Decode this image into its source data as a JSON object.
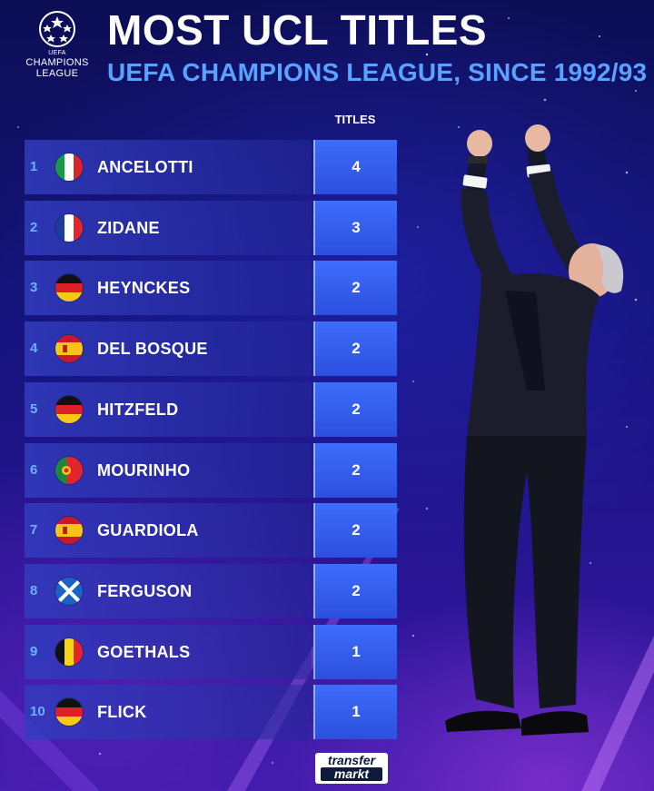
{
  "header": {
    "logo_label_line1": "CHAMPIONS",
    "logo_label_line2": "LEAGUE",
    "logo_label_top": "UEFA",
    "title": "MOST UCL TITLES",
    "subtitle": "UEFA CHAMPIONS LEAGUE, SINCE 1992/93"
  },
  "table": {
    "column_header": "TITLES",
    "rows": [
      {
        "rank": "1",
        "name": "ANCELOTTI",
        "titles": "4",
        "flag": "italy-flag-icon"
      },
      {
        "rank": "2",
        "name": "ZIDANE",
        "titles": "3",
        "flag": "france-flag-icon"
      },
      {
        "rank": "3",
        "name": "HEYNCKES",
        "titles": "2",
        "flag": "germany-flag-icon"
      },
      {
        "rank": "4",
        "name": "DEL BOSQUE",
        "titles": "2",
        "flag": "spain-flag-icon"
      },
      {
        "rank": "5",
        "name": "HITZFELD",
        "titles": "2",
        "flag": "germany-flag-icon"
      },
      {
        "rank": "6",
        "name": "MOURINHO",
        "titles": "2",
        "flag": "portugal-flag-icon"
      },
      {
        "rank": "7",
        "name": "GUARDIOLA",
        "titles": "2",
        "flag": "spain-flag-icon"
      },
      {
        "rank": "8",
        "name": "FERGUSON",
        "titles": "2",
        "flag": "scotland-flag-icon"
      },
      {
        "rank": "9",
        "name": "GOETHALS",
        "titles": "1",
        "flag": "belgium-flag-icon"
      },
      {
        "rank": "10",
        "name": "FLICK",
        "titles": "1",
        "flag": "germany-flag-icon"
      }
    ]
  },
  "footer": {
    "brand_line1": "transfer",
    "brand_line2": "markt"
  },
  "colors": {
    "accent_blue": "#5aa2ff",
    "count_box": "#3d6dfa",
    "background": "#14137a"
  }
}
